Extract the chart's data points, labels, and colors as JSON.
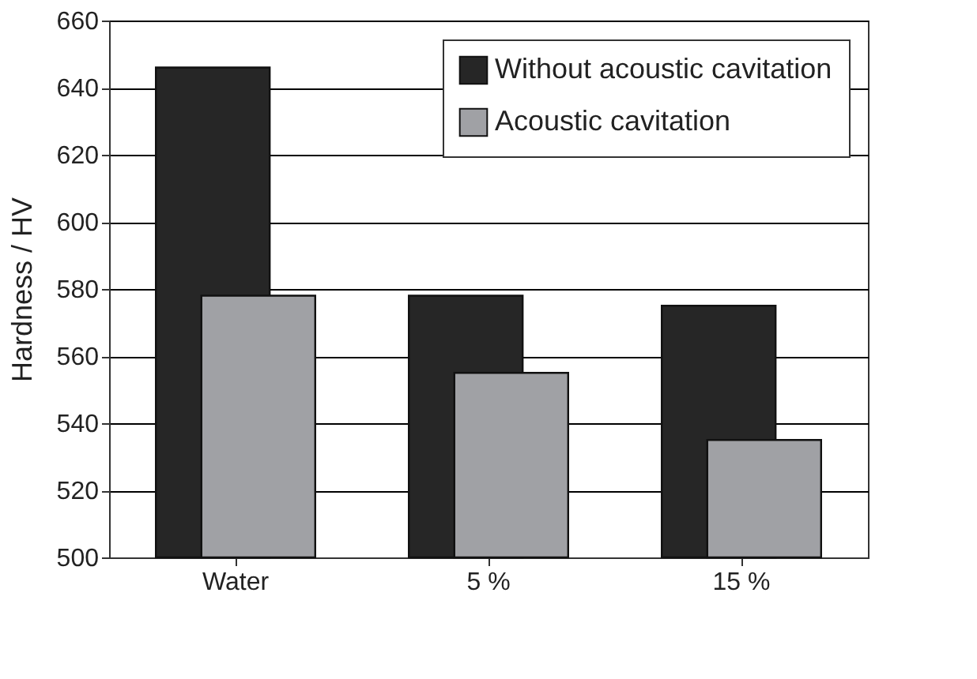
{
  "chart_data": {
    "type": "bar",
    "ylabel": "Hardness / HV",
    "categories": [
      "Water",
      "5 %",
      "15 %"
    ],
    "series": [
      {
        "name": "Without acoustic cavitation",
        "color": "#262626",
        "values": [
          646,
          578,
          575
        ]
      },
      {
        "name": "Acoustic cavitation",
        "color": "#a0a1a5",
        "values": [
          578,
          555,
          535
        ]
      }
    ],
    "ylim": [
      500,
      660
    ],
    "yticks": [
      500,
      520,
      540,
      560,
      580,
      600,
      620,
      640,
      660
    ],
    "grid": "y",
    "legend": "top right"
  }
}
